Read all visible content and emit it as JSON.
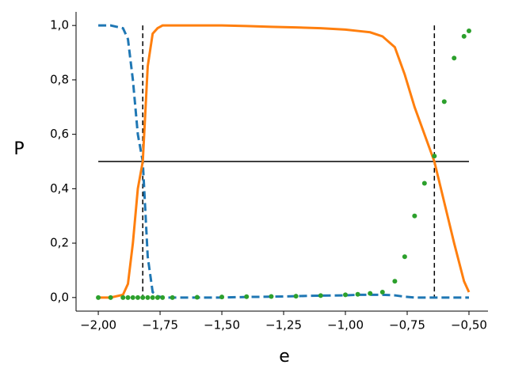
{
  "chart_data": {
    "type": "line",
    "x_label": "e",
    "y_label": "P",
    "x": [
      -2.0,
      -1.95,
      -1.9,
      -1.88,
      -1.86,
      -1.84,
      -1.82,
      -1.8,
      -1.78,
      -1.76,
      -1.74,
      -1.7,
      -1.6,
      -1.5,
      -1.4,
      -1.3,
      -1.2,
      -1.1,
      -1.0,
      -0.95,
      -0.9,
      -0.85,
      -0.8,
      -0.76,
      -0.72,
      -0.68,
      -0.64,
      -0.6,
      -0.56,
      -0.52,
      -0.5
    ],
    "series": [
      {
        "color": "#1f77b4",
        "style": "dashed",
        "values": [
          1,
          1,
          0.99,
          0.95,
          0.8,
          0.6,
          0.5,
          0.15,
          0.02,
          0.005,
          0,
          0,
          0,
          0,
          0.002,
          0.003,
          0.005,
          0.007,
          0.008,
          0.01,
          0.01,
          0.01,
          0.008,
          0.003,
          0,
          0,
          0,
          0,
          0,
          0,
          0
        ]
      },
      {
        "color": "#ff7f0e",
        "style": "solid",
        "values": [
          0,
          0,
          0.01,
          0.05,
          0.2,
          0.4,
          0.5,
          0.85,
          0.97,
          0.99,
          1,
          1,
          1,
          1,
          0.998,
          0.995,
          0.993,
          0.99,
          0.985,
          0.98,
          0.975,
          0.96,
          0.92,
          0.82,
          0.7,
          0.6,
          0.5,
          0.35,
          0.2,
          0.06,
          0.02
        ]
      },
      {
        "color": "#2ca02c",
        "style": "dots",
        "values": [
          0,
          0,
          0,
          0,
          0,
          0,
          0,
          0,
          0,
          0,
          0,
          0,
          0.001,
          0.002,
          0.003,
          0.004,
          0.005,
          0.007,
          0.01,
          0.012,
          0.015,
          0.02,
          0.06,
          0.15,
          0.3,
          0.42,
          0.52,
          0.72,
          0.88,
          0.96,
          0.98
        ]
      }
    ],
    "hlines": [
      0.5
    ],
    "vlines": [
      -1.82,
      -0.64
    ],
    "xlim": [
      -2.09,
      -0.423
    ],
    "ylim": [
      -0.05,
      1.05
    ],
    "xticks": [
      {
        "value": -2,
        "label": "−2,00"
      },
      {
        "value": -1.75,
        "label": "−1,75"
      },
      {
        "value": -1.5,
        "label": "−1,50"
      },
      {
        "value": -1.25,
        "label": "−1,25"
      },
      {
        "value": -1,
        "label": "−1,00"
      },
      {
        "value": -0.75,
        "label": "−0,75"
      },
      {
        "value": -0.5,
        "label": "−0,50"
      }
    ],
    "yticks": [
      {
        "value": 0,
        "label": "0,0"
      },
      {
        "value": 0.2,
        "label": "0,2"
      },
      {
        "value": 0.4,
        "label": "0,4"
      },
      {
        "value": 0.6,
        "label": "0,6"
      },
      {
        "value": 0.8,
        "label": "0,8"
      },
      {
        "value": 1,
        "label": "1,0"
      }
    ]
  }
}
